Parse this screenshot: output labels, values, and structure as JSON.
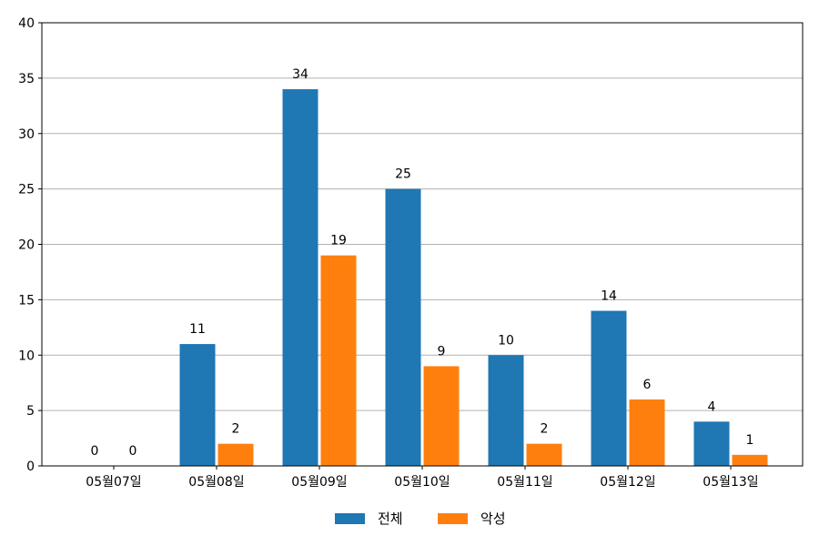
{
  "chart_data": {
    "type": "bar",
    "categories": [
      "05월07일",
      "05월08일",
      "05월09일",
      "05월10일",
      "05월11일",
      "05월12일",
      "05월13일"
    ],
    "series": [
      {
        "name": "전체",
        "color": "#1f77b4",
        "values": [
          0,
          11,
          34,
          25,
          10,
          14,
          4
        ]
      },
      {
        "name": "악성",
        "color": "#ff7f0e",
        "values": [
          0,
          2,
          19,
          9,
          2,
          6,
          1
        ]
      }
    ],
    "ylim": [
      0,
      40
    ],
    "yticks": [
      0,
      5,
      10,
      15,
      20,
      25,
      30,
      35,
      40
    ],
    "grid": "horizontal",
    "legend_position": "bottom-center",
    "data_labels": true
  }
}
